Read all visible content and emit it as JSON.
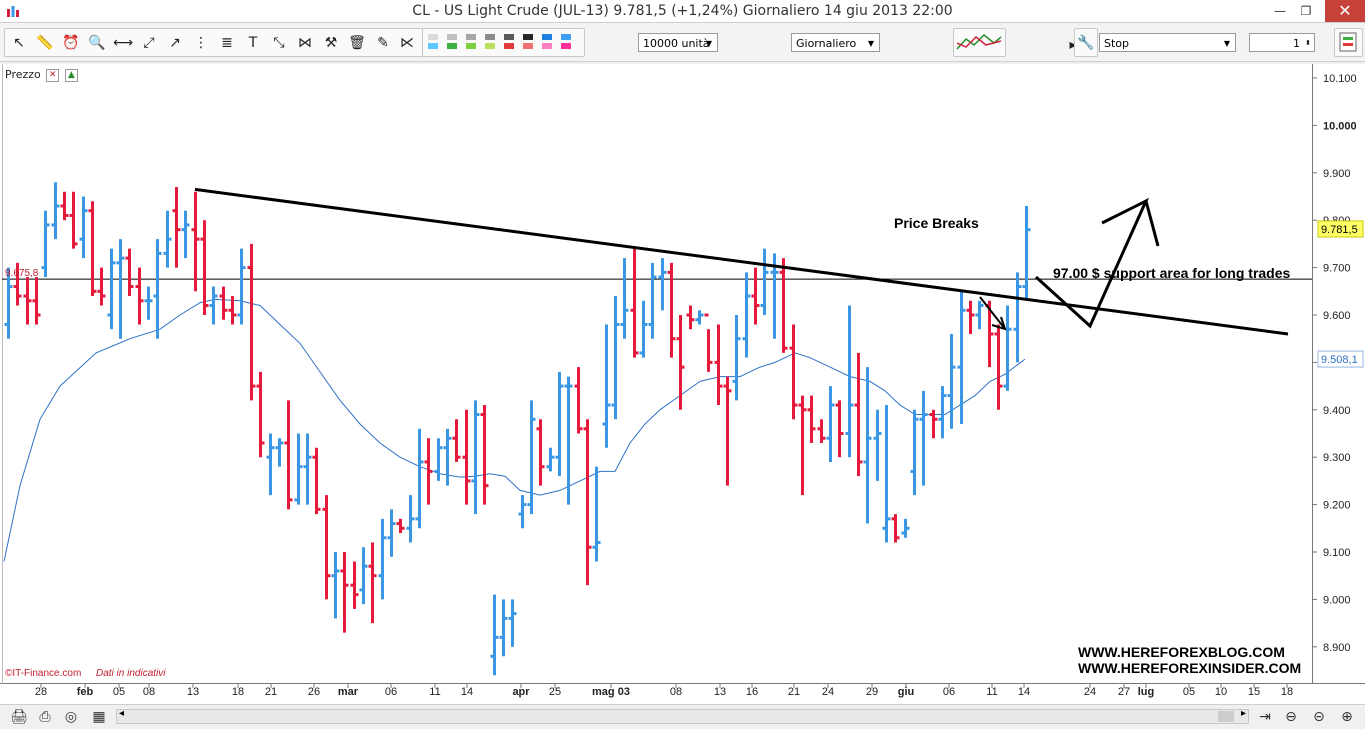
{
  "window": {
    "title": "CL - US Light Crude (JUL-13)     9.781,5 (+1,24%)     Giornaliero  14 giu 2013 22:00",
    "minimize": "—",
    "maximize": "❐",
    "close": "✕"
  },
  "toolbar": {
    "quantity": "10000 unità",
    "period": "Giornaliero",
    "order_type": "Stop",
    "lots": "1",
    "swatch_colors": [
      "#d9d9d9",
      "#bfbfbf",
      "#a6a6a6",
      "#8c8c8c",
      "#595959",
      "#262626",
      "#1f7fe0",
      "#3da0f0",
      "#5cc8ff",
      "#3cb043",
      "#7bd13f",
      "#b8e05c",
      "#e03a3a",
      "#f07070",
      "#ff80c0",
      "#ff2e9a"
    ]
  },
  "chart_data": {
    "type": "ohlc",
    "indicator_label": "Prezzo",
    "y_ticks": [
      "10.100",
      "10.000",
      "9.900",
      "9.800",
      "9.700",
      "9.600",
      "9.500",
      "9.400",
      "9.300",
      "9.200",
      "9.100",
      "9.000",
      "8.900"
    ],
    "y_range": [
      8.86,
      10.16
    ],
    "x_ticks": [
      "28",
      "feb",
      "05",
      "08",
      "13",
      "18",
      "21",
      "26",
      "mar",
      "06",
      "11",
      "14",
      "apr",
      "25",
      "mag",
      "03",
      "08",
      "13",
      "16",
      "21",
      "24",
      "29",
      "giu",
      "06",
      "11",
      "14",
      "24",
      "27",
      "lug",
      "05",
      "10",
      "15",
      "18"
    ],
    "x_ticks_rendered": [
      "28",
      "feb",
      "05",
      "08",
      "13",
      "18",
      "21",
      "26",
      "mar",
      "06",
      "11",
      "14",
      "apr",
      "25",
      "mag 03",
      "08",
      "13",
      "16",
      "21",
      "24",
      "29",
      "giu",
      "06",
      "11",
      "14",
      "24",
      "27",
      "lug",
      "05",
      "10",
      "15",
      "18"
    ],
    "last_price": 9.7815,
    "last_price_label": "9.781,5",
    "ma_last_label": "9.508,1",
    "hline_value": 9.6758,
    "hline_label": "9.675,8",
    "colors": {
      "up": "#3a97e6",
      "down": "#e5193c",
      "ma": "#2e72c8",
      "trend": "#000000"
    },
    "bars": [
      [
        9.58,
        9.7,
        9.55,
        9.66
      ],
      [
        9.66,
        9.71,
        9.62,
        9.64
      ],
      [
        9.64,
        9.68,
        9.58,
        9.63
      ],
      [
        9.63,
        9.68,
        9.58,
        9.6
      ],
      [
        9.7,
        9.82,
        9.68,
        9.79
      ],
      [
        9.79,
        9.88,
        9.76,
        9.83
      ],
      [
        9.83,
        9.86,
        9.8,
        9.81
      ],
      [
        9.81,
        9.86,
        9.74,
        9.75
      ],
      [
        9.76,
        9.85,
        9.72,
        9.82
      ],
      [
        9.82,
        9.84,
        9.64,
        9.65
      ],
      [
        9.65,
        9.7,
        9.62,
        9.64
      ],
      [
        9.6,
        9.74,
        9.57,
        9.71
      ],
      [
        9.71,
        9.76,
        9.55,
        9.72
      ],
      [
        9.72,
        9.74,
        9.64,
        9.66
      ],
      [
        9.66,
        9.7,
        9.58,
        9.63
      ],
      [
        9.63,
        9.66,
        9.59,
        9.63
      ],
      [
        9.64,
        9.76,
        9.55,
        9.73
      ],
      [
        9.73,
        9.82,
        9.7,
        9.76
      ],
      [
        9.82,
        9.87,
        9.7,
        9.78
      ],
      [
        9.78,
        9.82,
        9.72,
        9.79
      ],
      [
        9.78,
        9.86,
        9.65,
        9.76
      ],
      [
        9.76,
        9.8,
        9.6,
        9.62
      ],
      [
        9.62,
        9.66,
        9.58,
        9.64
      ],
      [
        9.64,
        9.66,
        9.59,
        9.61
      ],
      [
        9.61,
        9.64,
        9.58,
        9.6
      ],
      [
        9.6,
        9.74,
        9.58,
        9.7
      ],
      [
        9.7,
        9.75,
        9.42,
        9.45
      ],
      [
        9.45,
        9.48,
        9.3,
        9.33
      ],
      [
        9.3,
        9.35,
        9.22,
        9.32
      ],
      [
        9.32,
        9.34,
        9.28,
        9.33
      ],
      [
        9.33,
        9.42,
        9.19,
        9.21
      ],
      [
        9.21,
        9.35,
        9.2,
        9.28
      ],
      [
        9.28,
        9.35,
        9.2,
        9.3
      ],
      [
        9.3,
        9.32,
        9.18,
        9.19
      ],
      [
        9.19,
        9.22,
        9.0,
        9.05
      ],
      [
        9.05,
        9.1,
        8.96,
        9.06
      ],
      [
        9.06,
        9.1,
        8.93,
        9.03
      ],
      [
        9.03,
        9.08,
        8.98,
        9.01
      ],
      [
        9.02,
        9.11,
        8.99,
        9.07
      ],
      [
        9.07,
        9.12,
        8.95,
        9.05
      ],
      [
        9.05,
        9.17,
        9.0,
        9.13
      ],
      [
        9.13,
        9.19,
        9.09,
        9.16
      ],
      [
        9.16,
        9.17,
        9.14,
        9.15
      ],
      [
        9.15,
        9.22,
        9.12,
        9.17
      ],
      [
        9.17,
        9.36,
        9.15,
        9.29
      ],
      [
        9.29,
        9.34,
        9.2,
        9.27
      ],
      [
        9.27,
        9.34,
        9.25,
        9.32
      ],
      [
        9.32,
        9.36,
        9.24,
        9.34
      ],
      [
        9.34,
        9.38,
        9.29,
        9.3
      ],
      [
        9.3,
        9.4,
        9.2,
        9.25
      ],
      [
        9.25,
        9.42,
        9.18,
        9.39
      ],
      [
        9.39,
        9.41,
        9.2,
        9.24
      ],
      [
        8.88,
        9.01,
        8.84,
        8.92
      ],
      [
        8.92,
        9.0,
        8.88,
        8.96
      ],
      [
        8.96,
        9.0,
        8.9,
        8.97
      ],
      [
        9.18,
        9.22,
        9.15,
        9.2
      ],
      [
        9.2,
        9.42,
        9.18,
        9.38
      ],
      [
        9.36,
        9.38,
        9.24,
        9.28
      ],
      [
        9.28,
        9.32,
        9.27,
        9.3
      ],
      [
        9.3,
        9.48,
        9.26,
        9.45
      ],
      [
        9.45,
        9.47,
        9.2,
        9.45
      ],
      [
        9.45,
        9.49,
        9.35,
        9.36
      ],
      [
        9.36,
        9.38,
        9.03,
        9.11
      ],
      [
        9.11,
        9.28,
        9.08,
        9.12
      ],
      [
        9.37,
        9.58,
        9.32,
        9.41
      ],
      [
        9.41,
        9.64,
        9.38,
        9.58
      ],
      [
        9.58,
        9.72,
        9.55,
        9.61
      ],
      [
        9.61,
        9.74,
        9.51,
        9.52
      ],
      [
        9.52,
        9.63,
        9.51,
        9.58
      ],
      [
        9.58,
        9.71,
        9.55,
        9.68
      ],
      [
        9.68,
        9.72,
        9.61,
        9.69
      ],
      [
        9.69,
        9.71,
        9.51,
        9.55
      ],
      [
        9.55,
        9.6,
        9.4,
        9.49
      ],
      [
        9.6,
        9.62,
        9.57,
        9.59
      ],
      [
        9.59,
        9.61,
        9.58,
        9.6
      ],
      [
        9.6,
        9.57,
        9.48,
        9.5
      ],
      [
        9.5,
        9.58,
        9.41,
        9.45
      ],
      [
        9.45,
        9.47,
        9.24,
        9.44
      ],
      [
        9.46,
        9.6,
        9.42,
        9.55
      ],
      [
        9.55,
        9.69,
        9.51,
        9.64
      ],
      [
        9.64,
        9.7,
        9.58,
        9.62
      ],
      [
        9.62,
        9.74,
        9.6,
        9.69
      ],
      [
        9.69,
        9.73,
        9.55,
        9.69
      ],
      [
        9.69,
        9.72,
        9.52,
        9.53
      ],
      [
        9.53,
        9.58,
        9.38,
        9.41
      ],
      [
        9.41,
        9.43,
        9.22,
        9.4
      ],
      [
        9.4,
        9.43,
        9.33,
        9.36
      ],
      [
        9.36,
        9.38,
        9.33,
        9.34
      ],
      [
        9.34,
        9.45,
        9.29,
        9.41
      ],
      [
        9.41,
        9.42,
        9.3,
        9.35
      ],
      [
        9.35,
        9.62,
        9.3,
        9.41
      ],
      [
        9.41,
        9.52,
        9.26,
        9.29
      ],
      [
        9.29,
        9.49,
        9.16,
        9.34
      ],
      [
        9.34,
        9.4,
        9.25,
        9.35
      ],
      [
        9.15,
        9.41,
        9.12,
        9.17
      ],
      [
        9.17,
        9.18,
        9.12,
        9.13
      ],
      [
        9.14,
        9.17,
        9.13,
        9.15
      ],
      [
        9.27,
        9.4,
        9.22,
        9.38
      ],
      [
        9.38,
        9.44,
        9.24,
        9.39
      ],
      [
        9.39,
        9.4,
        9.34,
        9.38
      ],
      [
        9.38,
        9.45,
        9.34,
        9.43
      ],
      [
        9.43,
        9.56,
        9.36,
        9.49
      ],
      [
        9.49,
        9.65,
        9.37,
        9.61
      ],
      [
        9.61,
        9.63,
        9.56,
        9.6
      ],
      [
        9.6,
        9.63,
        9.57,
        9.62
      ],
      [
        9.62,
        9.63,
        9.49,
        9.56
      ],
      [
        9.56,
        9.58,
        9.4,
        9.45
      ],
      [
        9.45,
        9.62,
        9.44,
        9.57
      ],
      [
        9.57,
        9.69,
        9.5,
        9.66
      ],
      [
        9.66,
        9.83,
        9.63,
        9.78
      ]
    ],
    "ma": [
      [
        4,
        9.08
      ],
      [
        20,
        9.24
      ],
      [
        40,
        9.38
      ],
      [
        60,
        9.45
      ],
      [
        96,
        9.52
      ],
      [
        130,
        9.55
      ],
      [
        160,
        9.57
      ],
      [
        180,
        9.6
      ],
      [
        200,
        9.626
      ],
      [
        215,
        9.633
      ],
      [
        240,
        9.63
      ],
      [
        260,
        9.62
      ],
      [
        280,
        9.58
      ],
      [
        300,
        9.54
      ],
      [
        320,
        9.48
      ],
      [
        340,
        9.42
      ],
      [
        360,
        9.37
      ],
      [
        380,
        9.33
      ],
      [
        400,
        9.3
      ],
      [
        420,
        9.28
      ],
      [
        440,
        9.265
      ],
      [
        460,
        9.258
      ],
      [
        475,
        9.26
      ],
      [
        490,
        9.265
      ],
      [
        505,
        9.26
      ],
      [
        520,
        9.23
      ],
      [
        540,
        9.22
      ],
      [
        560,
        9.23
      ],
      [
        580,
        9.25
      ],
      [
        600,
        9.27
      ],
      [
        615,
        9.27
      ],
      [
        630,
        9.33
      ],
      [
        645,
        9.37
      ],
      [
        660,
        9.4
      ],
      [
        680,
        9.43
      ],
      [
        700,
        9.46
      ],
      [
        720,
        9.47
      ],
      [
        740,
        9.47
      ],
      [
        760,
        9.49
      ],
      [
        775,
        9.5
      ],
      [
        795,
        9.52
      ],
      [
        810,
        9.51
      ],
      [
        830,
        9.49
      ],
      [
        850,
        9.47
      ],
      [
        870,
        9.46
      ],
      [
        885,
        9.44
      ],
      [
        900,
        9.41
      ],
      [
        915,
        9.39
      ],
      [
        930,
        9.39
      ],
      [
        945,
        9.39
      ],
      [
        960,
        9.41
      ],
      [
        975,
        9.43
      ],
      [
        990,
        9.46
      ],
      [
        1005,
        9.475
      ],
      [
        1025,
        9.507
      ]
    ],
    "trendline": [
      [
        195,
        9.865
      ],
      [
        1288,
        9.56
      ]
    ],
    "breakout_arrow": {
      "from": [
        980,
        233
      ],
      "to": [
        1005,
        265
      ]
    },
    "target_arrow": [
      [
        1036,
        213
      ],
      [
        1090,
        262
      ],
      [
        1146,
        137
      ],
      [
        1102,
        159
      ]
    ],
    "target_arrow_head": [
      [
        1146,
        137
      ],
      [
        1158,
        182
      ]
    ]
  },
  "annotations": {
    "price_breaks": "Price Breaks",
    "support": "97.00 $ support area for long trades",
    "site1": "WWW.HEREFOREXBLOG.COM",
    "site2": "WWW.HEREFOREXINSIDER.COM",
    "copyright": "©IT-Finance.com",
    "copyright_note": "Dati in indicativi"
  }
}
